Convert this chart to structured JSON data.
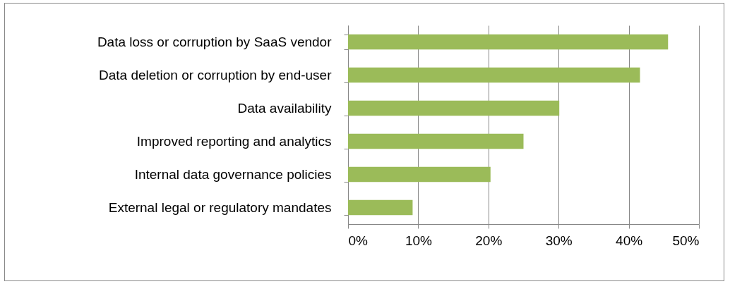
{
  "chart_data": {
    "type": "bar",
    "orientation": "horizontal",
    "categories": [
      "Data loss or corruption by SaaS vendor",
      "Data deletion or corruption by end-user",
      "Data availability",
      "Improved reporting and analytics",
      "Internal data governance policies",
      "External legal or regulatory mandates"
    ],
    "values": [
      45.6,
      41.6,
      30.1,
      25.0,
      20.3,
      9.2
    ],
    "color": "#9bbb59",
    "xlim": [
      0,
      50
    ],
    "xticks": [
      {
        "value": 0,
        "label": "0%"
      },
      {
        "value": 10,
        "label": "10%"
      },
      {
        "value": 20,
        "label": "20%"
      },
      {
        "value": 30,
        "label": "30%"
      },
      {
        "value": 40,
        "label": "40%"
      },
      {
        "value": 50,
        "label": "50%"
      }
    ],
    "grid": "x"
  }
}
